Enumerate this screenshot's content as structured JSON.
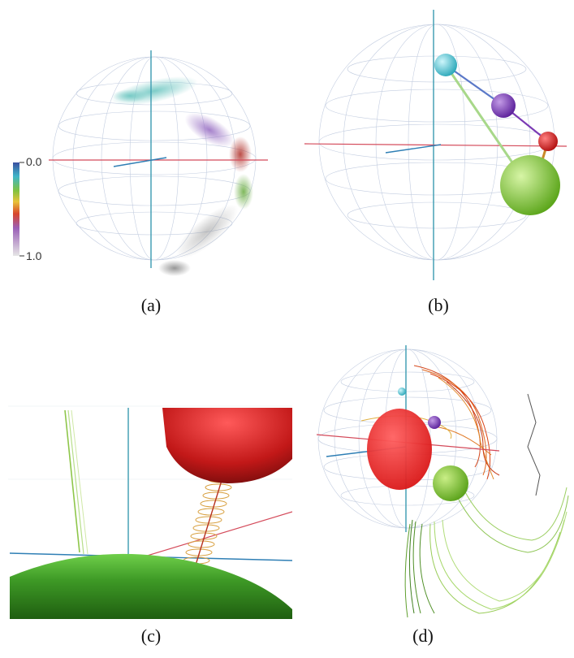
{
  "panels": {
    "a": {
      "caption": "(a)",
      "colorbar": {
        "top_label": "0.0",
        "bottom_label": "1.0",
        "colors": [
          "#3a4fa0",
          "#3fb6c9",
          "#7fc241",
          "#e8c33a",
          "#d8452c",
          "#9a5fb6",
          "#d9d9d9"
        ]
      },
      "point_clusters": [
        {
          "name": "cyan",
          "color": "#5fc4c4"
        },
        {
          "name": "purple",
          "color": "#a07ac8"
        },
        {
          "name": "red",
          "color": "#c0504d"
        },
        {
          "name": "green",
          "color": "#7fb85a"
        },
        {
          "name": "gray",
          "color": "#9a9a9a"
        }
      ]
    },
    "b": {
      "caption": "(b)",
      "spheres": [
        {
          "name": "cyan",
          "color": "#35c6d8"
        },
        {
          "name": "purple",
          "color": "#7a36b8"
        },
        {
          "name": "red",
          "color": "#e01c1c"
        },
        {
          "name": "green",
          "color": "#7fd22a"
        }
      ]
    },
    "c": {
      "caption": "(c)"
    },
    "d": {
      "caption": "(d)"
    }
  },
  "colors": {
    "axis_red": "#d44a5a",
    "axis_blue": "#2f7fb5",
    "axis_teal": "#3a9bb0",
    "grid": "#b9c6dc",
    "trajectory_green": "#8ec64a",
    "trajectory_red": "#d64a1e"
  }
}
